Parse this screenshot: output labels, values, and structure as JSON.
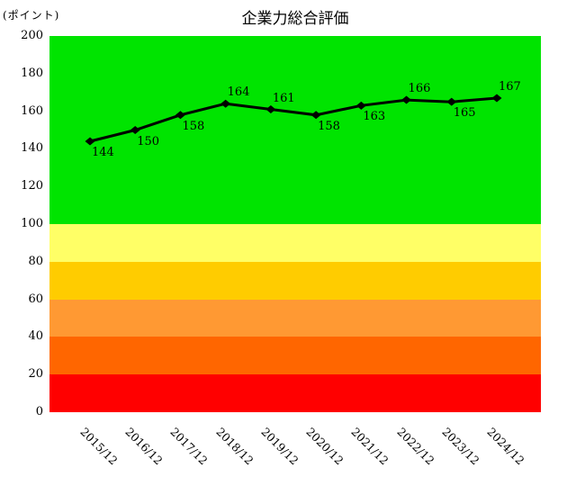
{
  "chart_data": {
    "type": "line",
    "title": "企業力総合評価",
    "unit_label": "(ポイント)",
    "categories": [
      "2015/12",
      "2016/12",
      "2017/12",
      "2018/12",
      "2019/12",
      "2020/12",
      "2021/12",
      "2022/12",
      "2023/12",
      "2024/12"
    ],
    "values": [
      144,
      150,
      158,
      164,
      161,
      158,
      163,
      166,
      165,
      167
    ],
    "value_label_positions": [
      "below",
      "below",
      "below",
      "above",
      "above",
      "below",
      "below",
      "above",
      "below",
      "above"
    ],
    "ylim": [
      0,
      200
    ],
    "yticks": [
      0,
      20,
      40,
      60,
      80,
      100,
      120,
      140,
      160,
      180,
      200
    ],
    "grid": false,
    "legend": null,
    "line_color": "#000000",
    "marker": "diamond",
    "bands": [
      {
        "from": 100,
        "to": 200,
        "color": "#00e400"
      },
      {
        "from": 80,
        "to": 100,
        "color": "#ffff66"
      },
      {
        "from": 60,
        "to": 80,
        "color": "#ffcc00"
      },
      {
        "from": 40,
        "to": 60,
        "color": "#ff9933"
      },
      {
        "from": 20,
        "to": 40,
        "color": "#ff6600"
      },
      {
        "from": 0,
        "to": 20,
        "color": "#ff0000"
      }
    ]
  }
}
